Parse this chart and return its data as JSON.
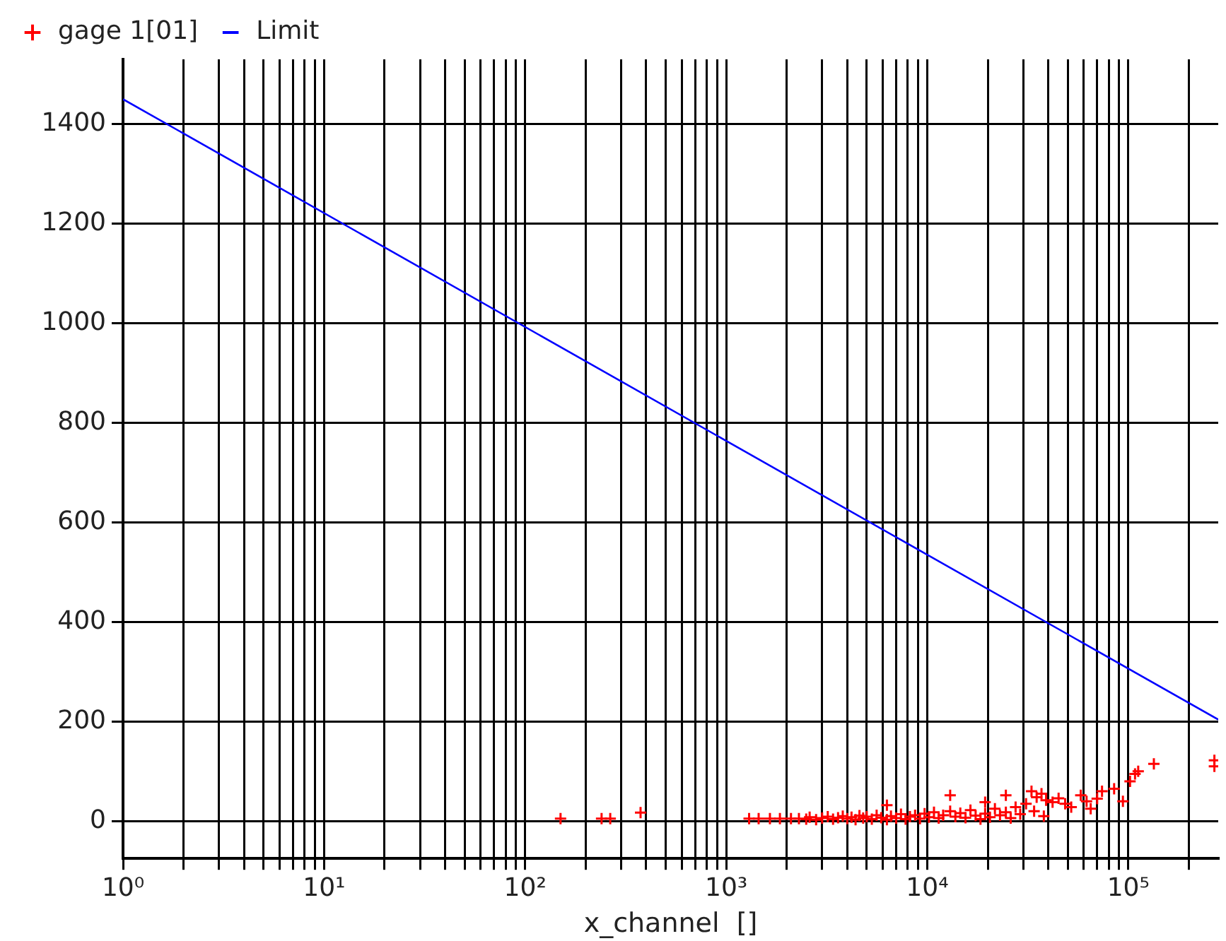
{
  "chart_data": {
    "type": "scatter",
    "xlabel": "x_channel  []",
    "log": "x",
    "grid": true,
    "legend": "top left",
    "xlim": [
      1,
      280000
    ],
    "ylim": [
      -75,
      1530
    ],
    "xticks": [
      {
        "value": 1,
        "label": "10⁰"
      },
      {
        "value": 2,
        "label": null
      },
      {
        "value": 3,
        "label": null
      },
      {
        "value": 4,
        "label": null
      },
      {
        "value": 5,
        "label": null
      },
      {
        "value": 6,
        "label": null
      },
      {
        "value": 7,
        "label": null
      },
      {
        "value": 8,
        "label": null
      },
      {
        "value": 9,
        "label": null
      },
      {
        "value": 10,
        "label": "10¹"
      },
      {
        "value": 20,
        "label": null
      },
      {
        "value": 30,
        "label": null
      },
      {
        "value": 40,
        "label": null
      },
      {
        "value": 50,
        "label": null
      },
      {
        "value": 60,
        "label": null
      },
      {
        "value": 70,
        "label": null
      },
      {
        "value": 80,
        "label": null
      },
      {
        "value": 90,
        "label": null
      },
      {
        "value": 100,
        "label": "10²"
      },
      {
        "value": 200,
        "label": null
      },
      {
        "value": 300,
        "label": null
      },
      {
        "value": 400,
        "label": null
      },
      {
        "value": 500,
        "label": null
      },
      {
        "value": 600,
        "label": null
      },
      {
        "value": 700,
        "label": null
      },
      {
        "value": 800,
        "label": null
      },
      {
        "value": 900,
        "label": null
      },
      {
        "value": 1000,
        "label": "10³"
      },
      {
        "value": 2000,
        "label": null
      },
      {
        "value": 3000,
        "label": null
      },
      {
        "value": 4000,
        "label": null
      },
      {
        "value": 5000,
        "label": null
      },
      {
        "value": 6000,
        "label": null
      },
      {
        "value": 7000,
        "label": null
      },
      {
        "value": 8000,
        "label": null
      },
      {
        "value": 9000,
        "label": null
      },
      {
        "value": 10000,
        "label": "10⁴"
      },
      {
        "value": 20000,
        "label": null
      },
      {
        "value": 30000,
        "label": null
      },
      {
        "value": 40000,
        "label": null
      },
      {
        "value": 50000,
        "label": null
      },
      {
        "value": 60000,
        "label": null
      },
      {
        "value": 70000,
        "label": null
      },
      {
        "value": 80000,
        "label": null
      },
      {
        "value": 90000,
        "label": null
      },
      {
        "value": 100000,
        "label": "10⁵"
      },
      {
        "value": 200000,
        "label": null
      }
    ],
    "yticks": [
      0,
      200,
      400,
      600,
      800,
      1000,
      1200,
      1400
    ],
    "series": [
      {
        "name": "gage 1[01]",
        "type": "scatter",
        "marker": "cross",
        "color": "#ff0000",
        "x": [
          150,
          240,
          265,
          375,
          1300,
          1450,
          1650,
          1850,
          2100,
          2300,
          2500,
          2600,
          2800,
          3000,
          3200,
          3400,
          3600,
          3800,
          4000,
          4200,
          4400,
          4600,
          4800,
          5000,
          5300,
          5600,
          5900,
          6300,
          6300,
          6600,
          7000,
          7400,
          7800,
          8200,
          8700,
          9200,
          9700,
          10200,
          10800,
          11400,
          12000,
          13000,
          13000,
          13800,
          14600,
          15500,
          16400,
          17400,
          18400,
          19400,
          19400,
          20500,
          21700,
          23000,
          24600,
          24600,
          26000,
          27500,
          29000,
          31000,
          33000,
          34000,
          35000,
          37000,
          38000,
          39000,
          42000,
          45000,
          48500,
          52000,
          58000,
          62000,
          65000,
          70000,
          74000,
          85000,
          94000,
          102000,
          108000,
          112000,
          134000,
          268000,
          268000
        ],
        "values": [
          5,
          5,
          5,
          17,
          5,
          5,
          5,
          5,
          5,
          5,
          4,
          8,
          3,
          6,
          9,
          4,
          7,
          10,
          5,
          8,
          3,
          11,
          6,
          9,
          4,
          12,
          7,
          32,
          3,
          10,
          6,
          14,
          4,
          9,
          12,
          5,
          15,
          8,
          18,
          6,
          12,
          52,
          20,
          9,
          16,
          7,
          22,
          11,
          4,
          38,
          15,
          8,
          25,
          12,
          52,
          18,
          6,
          28,
          14,
          35,
          60,
          20,
          48,
          55,
          10,
          42,
          38,
          46,
          35,
          28,
          52,
          40,
          25,
          45,
          60,
          65,
          40,
          80,
          95,
          100,
          115,
          110,
          122
        ]
      },
      {
        "name": "Limit",
        "type": "line",
        "marker": "none",
        "color": "#0000ff",
        "x": [
          1,
          280000
        ],
        "values": [
          1450,
          204
        ]
      }
    ]
  }
}
